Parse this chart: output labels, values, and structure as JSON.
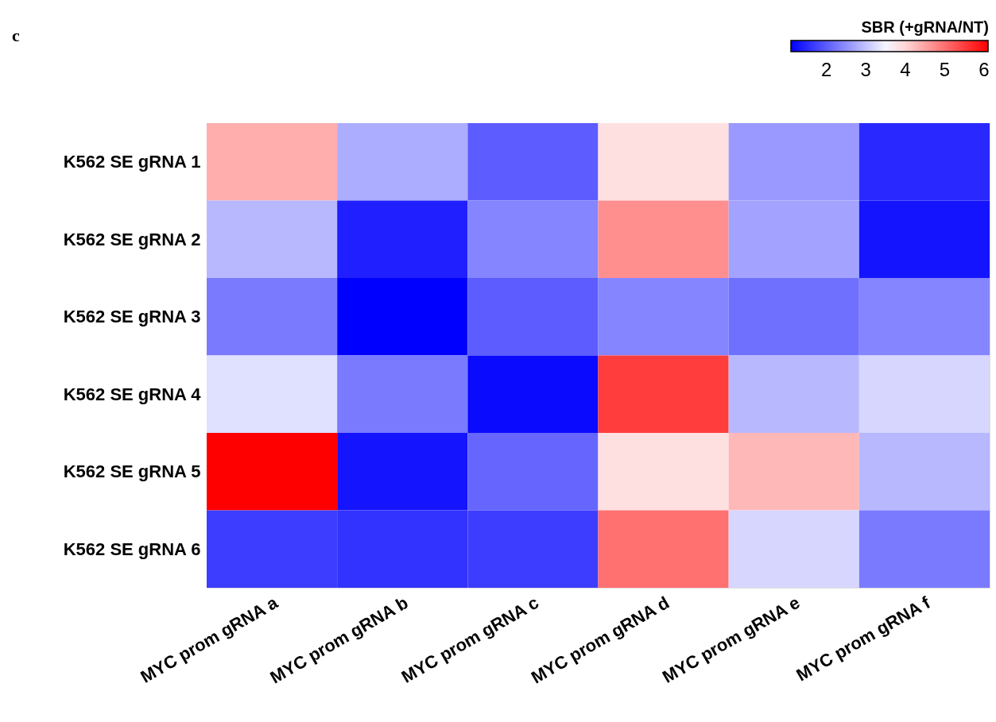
{
  "chart_data": {
    "type": "heatmap",
    "clabel": "SBR (+gRNA/NT)",
    "annotations": [
      "c"
    ],
    "categories": [
      "MYC prom gRNA a",
      "MYC prom gRNA b",
      "MYC prom gRNA c",
      "MYC prom gRNA d",
      "MYC prom gRNA e",
      "MYC prom gRNA f"
    ],
    "y_categories": [
      "K562 SE gRNA 1",
      "K562 SE gRNA 2",
      "K562 SE gRNA 3",
      "K562 SE gRNA 4",
      "K562 SE gRNA 5",
      "K562 SE gRNA 6"
    ],
    "cells": [
      [
        4.4,
        2.8,
        2.0,
        3.9,
        2.6,
        1.5
      ],
      [
        2.9,
        1.4,
        2.4,
        4.7,
        2.7,
        1.3
      ],
      [
        2.3,
        1.1,
        2.0,
        2.4,
        2.2,
        2.4
      ],
      [
        3.3,
        2.3,
        1.2,
        5.5,
        2.9,
        3.2
      ],
      [
        6.1,
        1.3,
        2.1,
        3.9,
        4.3,
        2.9
      ],
      [
        1.7,
        1.6,
        1.7,
        5.0,
        3.2,
        2.3
      ]
    ],
    "clim": [
      1.1,
      6.1
    ],
    "cticks": [
      2,
      3,
      4,
      5,
      6
    ],
    "colors": [
      "#0000ff",
      "#ffffff",
      "#ff0000"
    ]
  }
}
